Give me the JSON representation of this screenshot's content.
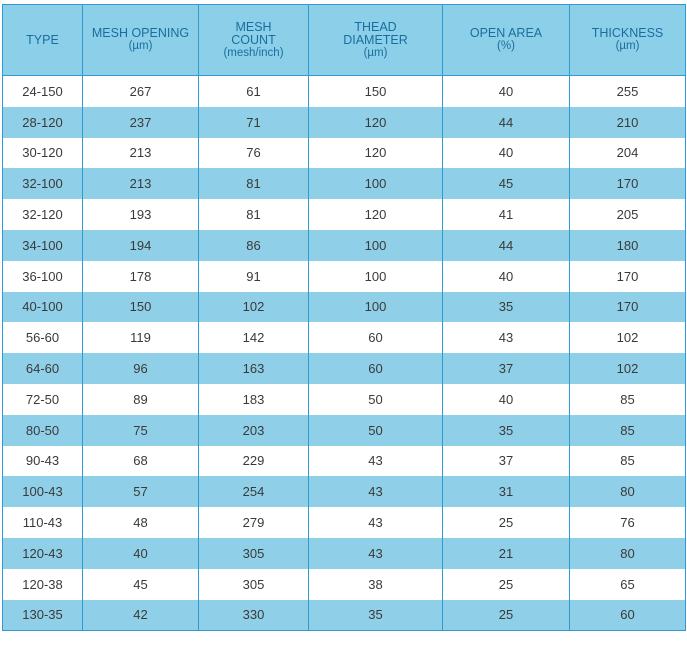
{
  "table": {
    "headers": [
      {
        "main": "TYPE",
        "unit": ""
      },
      {
        "main": "MESH OPENING",
        "unit": "(µm)"
      },
      {
        "main": "MESH\nCOUNT",
        "unit": "(mesh/inch)"
      },
      {
        "main": "THEAD\nDIAMETER",
        "unit": "(µm)"
      },
      {
        "main": "OPEN AREA",
        "unit": "(%)"
      },
      {
        "main": "THICKNESS",
        "unit": "(µm)"
      }
    ],
    "rows": [
      [
        "24-150",
        "267",
        "61",
        "150",
        "40",
        "255"
      ],
      [
        "28-120",
        "237",
        "71",
        "120",
        "44",
        "210"
      ],
      [
        "30-120",
        "213",
        "76",
        "120",
        "40",
        "204"
      ],
      [
        "32-100",
        "213",
        "81",
        "100",
        "45",
        "170"
      ],
      [
        "32-120",
        "193",
        "81",
        "120",
        "41",
        "205"
      ],
      [
        "34-100",
        "194",
        "86",
        "100",
        "44",
        "180"
      ],
      [
        "36-100",
        "178",
        "91",
        "100",
        "40",
        "170"
      ],
      [
        "40-100",
        "150",
        "102",
        "100",
        "35",
        "170"
      ],
      [
        "56-60",
        "119",
        "142",
        "60",
        "43",
        "102"
      ],
      [
        "64-60",
        "96",
        "163",
        "60",
        "37",
        "102"
      ],
      [
        "72-50",
        "89",
        "183",
        "50",
        "40",
        "85"
      ],
      [
        "80-50",
        "75",
        "203",
        "50",
        "35",
        "85"
      ],
      [
        "90-43",
        "68",
        "229",
        "43",
        "37",
        "85"
      ],
      [
        "100-43",
        "57",
        "254",
        "43",
        "31",
        "80"
      ],
      [
        "110-43",
        "48",
        "279",
        "43",
        "25",
        "76"
      ],
      [
        "120-43",
        "40",
        "305",
        "43",
        "21",
        "80"
      ],
      [
        "120-38",
        "45",
        "305",
        "38",
        "25",
        "65"
      ],
      [
        "130-35",
        "42",
        "330",
        "35",
        "25",
        "60"
      ]
    ]
  },
  "colors": {
    "header_bg": "#8ccfe8",
    "header_text": "#1a6e9e",
    "stripe": "#8fd0e8",
    "border": "#2f9bd2"
  }
}
